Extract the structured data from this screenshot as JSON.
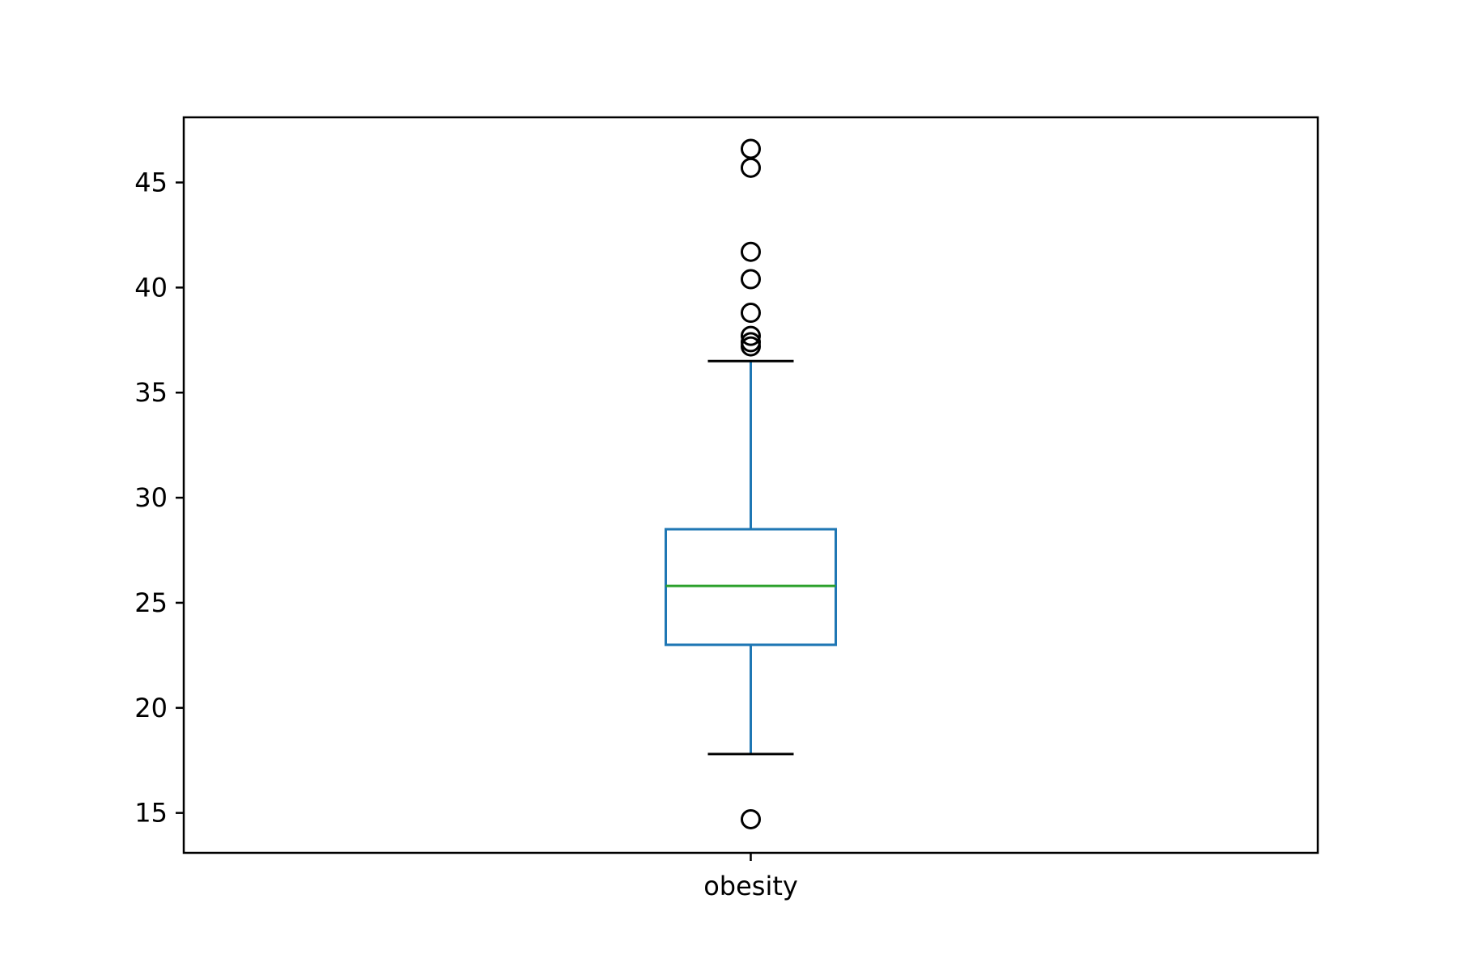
{
  "chart_data": {
    "type": "box",
    "title": "",
    "xlabel": "",
    "ylabel": "",
    "categories": [
      "obesity"
    ],
    "ylim": [
      13.1,
      48.1
    ],
    "yticks": [
      15,
      20,
      25,
      30,
      35,
      40,
      45
    ],
    "grid": false,
    "legend": "none",
    "boxes": [
      {
        "name": "obesity",
        "whisker_low": 17.8,
        "q1": 23.0,
        "median": 25.8,
        "q3": 28.5,
        "whisker_high": 36.5,
        "outliers": [
          14.7,
          37.2,
          37.4,
          37.7,
          38.8,
          40.4,
          41.7,
          45.7,
          46.6
        ]
      }
    ],
    "colors": {
      "box": "#1f77b4",
      "median": "#2ca02c",
      "caps": "#000000",
      "outliers": "#000000"
    }
  }
}
